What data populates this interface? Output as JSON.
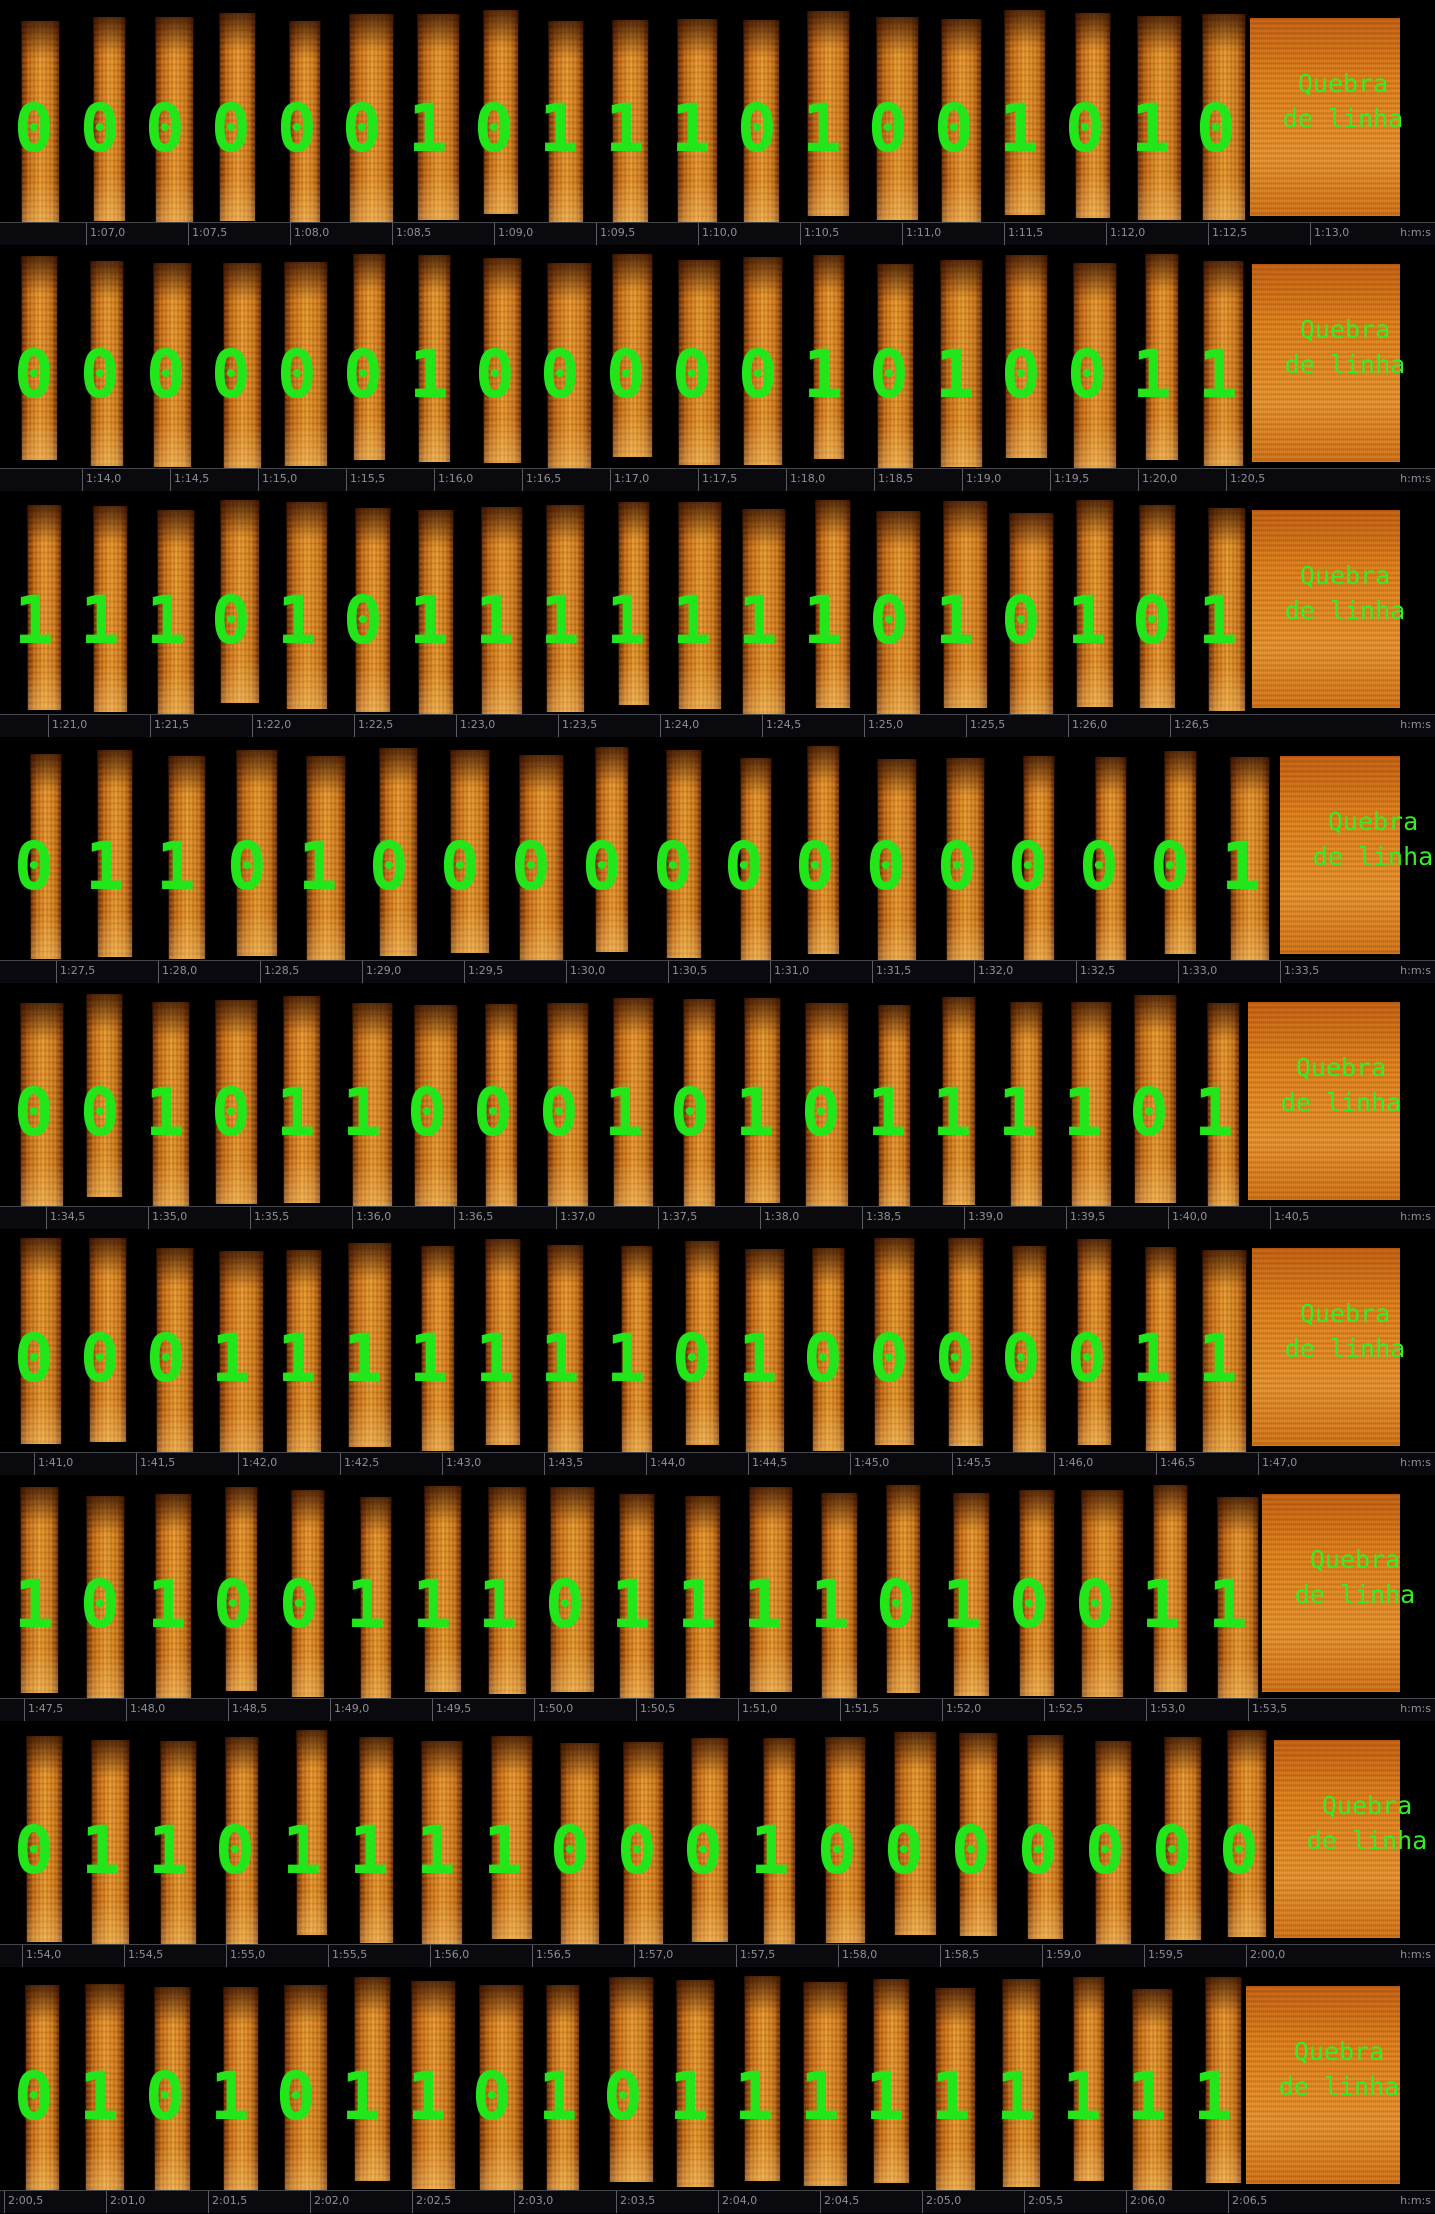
{
  "line_break_label": [
    "Quebra",
    "de linha"
  ],
  "time_unit": "h:m:s",
  "colors": {
    "bits": "#22e61a",
    "label": "#33ee22"
  },
  "rows": [
    {
      "bits": "0 0 0 0 0 0 1 0 1 1 1 0 1 0 0 1 0 1 0",
      "ticks": [
        "1:07,0",
        "1:07,5",
        "1:08,0",
        "1:08,5",
        "1:09,0",
        "1:09,5",
        "1:10,0",
        "1:10,5",
        "1:11,0",
        "1:11,5",
        "1:12,0",
        "1:12,5",
        "1:13,0"
      ]
    },
    {
      "bits": "0 0 0 0 0 0 1 0 0 0 0 0 1 0 1 0 0 1 1",
      "ticks": [
        "1:14,0",
        "1:14,5",
        "1:15,0",
        "1:15,5",
        "1:16,0",
        "1:16,5",
        "1:17,0",
        "1:17,5",
        "1:18,0",
        "1:18,5",
        "1:19,0",
        "1:19,5",
        "1:20,0",
        "1:20,5"
      ]
    },
    {
      "bits": "1 1 1 0 1 0 1 1 1 1 1 1 1 0 1 0 1 0 1",
      "ticks": [
        "1:21,0",
        "1:21,5",
        "1:22,0",
        "1:22,5",
        "1:23,0",
        "1:23,5",
        "1:24,0",
        "1:24,5",
        "1:25,0",
        "1:25,5",
        "1:26,0",
        "1:26,5"
      ]
    },
    {
      "bits": "0 1 1 0 1 0 0 0 0 0 0 0 0 0 0 0 0 1",
      "ticks": [
        "1:27,5",
        "1:28,0",
        "1:28,5",
        "1:29,0",
        "1:29,5",
        "1:30,0",
        "1:30,5",
        "1:31,0",
        "1:31,5",
        "1:32,0",
        "1:32,5",
        "1:33,0",
        "1:33,5"
      ]
    },
    {
      "bits": "0 0 1 0 1 1 0 0 0 1 0 1 0 1 1 1 1 0 1",
      "ticks": [
        "1:34,5",
        "1:35,0",
        "1:35,5",
        "1:36,0",
        "1:36,5",
        "1:37,0",
        "1:37,5",
        "1:38,0",
        "1:38,5",
        "1:39,0",
        "1:39,5",
        "1:40,0",
        "1:40,5"
      ]
    },
    {
      "bits": "0 0 0 1 1 1 1 1 1 1 0 1 0 0 0 0 0 1 1",
      "ticks": [
        "1:41,0",
        "1:41,5",
        "1:42,0",
        "1:42,5",
        "1:43,0",
        "1:43,5",
        "1:44,0",
        "1:44,5",
        "1:45,0",
        "1:45,5",
        "1:46,0",
        "1:46,5",
        "1:47,0"
      ]
    },
    {
      "bits": "1 0 1 0 0 1 1 1 0 1 1 1 1 0 1 0 0 1 1",
      "ticks": [
        "1:47,5",
        "1:48,0",
        "1:48,5",
        "1:49,0",
        "1:49,5",
        "1:50,0",
        "1:50,5",
        "1:51,0",
        "1:51,5",
        "1:52,0",
        "1:52,5",
        "1:53,0",
        "1:53,5"
      ]
    },
    {
      "bits": "0 1 1 0 1 1 1 1 0 0 0 1 0 0 0 0 0 0 0",
      "ticks": [
        "1:54,0",
        "1:54,5",
        "1:55,0",
        "1:55,5",
        "1:56,0",
        "1:56,5",
        "1:57,0",
        "1:57,5",
        "1:58,0",
        "1:58,5",
        "1:59,0",
        "1:59,5",
        "2:00,0"
      ]
    },
    {
      "bits": "0 1 0 1 0 1 1 0 1 0 1 1 1 1 1 1 1 1 1",
      "ticks": [
        "2:00,5",
        "2:01,0",
        "2:01,5",
        "2:02,0",
        "2:02,5",
        "2:03,0",
        "2:03,5",
        "2:04,0",
        "2:04,5",
        "2:05,0",
        "2:05,5",
        "2:06,0",
        "2:06,5"
      ]
    }
  ]
}
